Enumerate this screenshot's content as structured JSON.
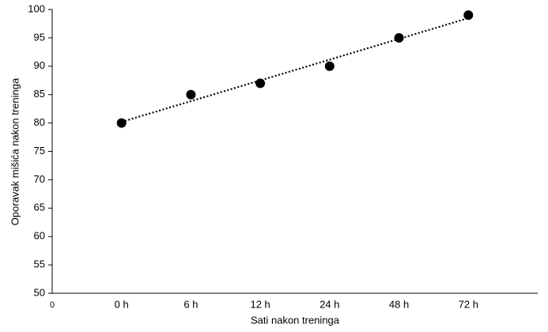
{
  "chart_data": {
    "type": "scatter",
    "x_label": "Sati nakon treninga",
    "y_label": "Oporavak mišića nakon treninga",
    "x_origin_label": "0",
    "categories": [
      "0 h",
      "6 h",
      "12 h",
      "24 h",
      "48 h",
      "72 h"
    ],
    "values": [
      80,
      85,
      87,
      90,
      95,
      99
    ],
    "color": "#000000",
    "trendline": true,
    "ylim": [
      50,
      100
    ],
    "yticks": [
      50,
      55,
      60,
      65,
      70,
      75,
      80,
      85,
      90,
      95,
      100
    ],
    "grid": false
  }
}
